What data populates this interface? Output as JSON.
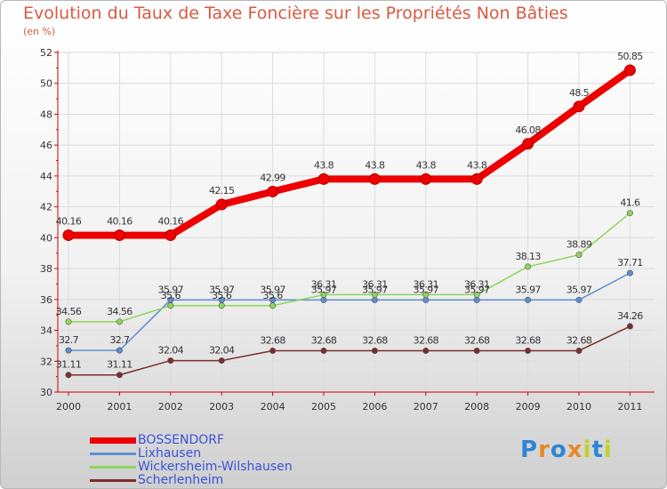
{
  "header": {
    "title": "Evolution du Taux de Taxe Foncière sur les Propriétés Non Bâties",
    "subtitle": "(en %)"
  },
  "chart_data": {
    "type": "line",
    "title": "Evolution du Taux de Taxe Foncière sur les Propriétés Non Bâties",
    "ylabel": "(en %)",
    "xlabel": "",
    "ylim": [
      30,
      52
    ],
    "yticks": [
      30,
      32,
      34,
      36,
      38,
      40,
      42,
      44,
      46,
      48,
      50,
      52
    ],
    "categories": [
      "2000",
      "2001",
      "2002",
      "2003",
      "2004",
      "2005",
      "2006",
      "2007",
      "2008",
      "2009",
      "2010",
      "2011"
    ],
    "series": [
      {
        "name": "BOSSENDORF",
        "color": "#ee0000",
        "values": [
          40.16,
          40.16,
          40.16,
          42.15,
          42.99,
          43.8,
          43.8,
          43.8,
          43.8,
          46.08,
          48.5,
          50.85
        ],
        "labels": [
          "40.16",
          "40.16",
          "40.16",
          "42.15",
          "42.99",
          "43.8",
          "43.8",
          "43.8",
          "43.8",
          "46.08",
          "48.5",
          "50.85"
        ]
      },
      {
        "name": "Lixhausen",
        "color": "#5b8fd1",
        "values": [
          32.7,
          32.7,
          35.97,
          35.97,
          35.97,
          35.97,
          35.97,
          35.97,
          35.97,
          35.97,
          35.97,
          37.71
        ],
        "labels": [
          "32.7",
          "32.7",
          "35.97",
          "35.97",
          "35.97",
          "35.97",
          "35.97",
          "35.97",
          "35.97",
          "35.97",
          "35.97",
          "37.71"
        ]
      },
      {
        "name": "Wickersheim-Wilshausen",
        "color": "#8ed65a",
        "values": [
          34.56,
          34.56,
          35.6,
          35.6,
          35.6,
          36.31,
          36.31,
          36.31,
          36.31,
          38.13,
          38.89,
          41.6
        ],
        "labels": [
          "34.56",
          "34.56",
          "35.6",
          "35.6",
          "35.6",
          "36.31",
          "36.31",
          "36.31",
          "36.31",
          "38.13",
          "38.89",
          "41.6"
        ]
      },
      {
        "name": "Scherlenheim",
        "color": "#7a2d2d",
        "values": [
          31.11,
          31.11,
          32.04,
          32.04,
          32.68,
          32.68,
          32.68,
          32.68,
          32.68,
          32.68,
          32.68,
          34.26
        ],
        "labels": [
          "31.11",
          "31.11",
          "32.04",
          "32.04",
          "32.68",
          "32.68",
          "32.68",
          "32.68",
          "32.68",
          "32.68",
          "32.68",
          "34.26"
        ]
      }
    ]
  },
  "legend": [
    {
      "label": "BOSSENDORF",
      "color": "#ee0000"
    },
    {
      "label": "Lixhausen",
      "color": "#5b8fd1"
    },
    {
      "label": "Wickersheim-Wilshausen",
      "color": "#8ed65a"
    },
    {
      "label": "Scherlenheim",
      "color": "#7a2d2d"
    }
  ],
  "logo": {
    "letters": [
      "P",
      "r",
      "o",
      "x",
      "i",
      "t",
      "i"
    ],
    "colors": [
      "#2e86d6",
      "#e5892a",
      "#2e86d6",
      "#e5892a",
      "#c2d12a",
      "#2e86d6",
      "#c2d12a"
    ]
  }
}
